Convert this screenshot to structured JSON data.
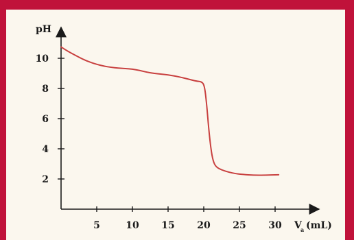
{
  "chart_data": {
    "type": "line",
    "ylabel": "pH",
    "xlabel_main": "V",
    "xlabel_sub": "a",
    "xlabel_unit": "(mL)",
    "xlim": [
      0,
      32
    ],
    "ylim": [
      0,
      12
    ],
    "xticks": [
      5,
      10,
      15,
      20,
      25,
      30
    ],
    "yticks": [
      2,
      4,
      6,
      8,
      10
    ],
    "grid": false,
    "series": [
      {
        "color": "#c8403f",
        "points": [
          [
            0,
            10.75
          ],
          [
            1,
            10.45
          ],
          [
            2,
            10.2
          ],
          [
            3,
            9.95
          ],
          [
            4,
            9.75
          ],
          [
            5,
            9.6
          ],
          [
            6,
            9.48
          ],
          [
            7,
            9.4
          ],
          [
            8,
            9.35
          ],
          [
            9,
            9.32
          ],
          [
            10,
            9.28
          ],
          [
            11,
            9.2
          ],
          [
            12,
            9.08
          ],
          [
            13,
            9.0
          ],
          [
            14,
            8.95
          ],
          [
            15,
            8.9
          ],
          [
            16,
            8.82
          ],
          [
            17,
            8.72
          ],
          [
            18,
            8.6
          ],
          [
            19,
            8.48
          ],
          [
            19.7,
            8.45
          ],
          [
            20.1,
            8.2
          ],
          [
            20.4,
            7.0
          ],
          [
            20.7,
            5.3
          ],
          [
            21.0,
            4.0
          ],
          [
            21.3,
            3.2
          ],
          [
            21.7,
            2.8
          ],
          [
            22.5,
            2.6
          ],
          [
            23.5,
            2.45
          ],
          [
            24.5,
            2.35
          ],
          [
            25.5,
            2.3
          ],
          [
            27,
            2.25
          ],
          [
            28.5,
            2.25
          ],
          [
            30.5,
            2.28
          ]
        ]
      }
    ]
  }
}
